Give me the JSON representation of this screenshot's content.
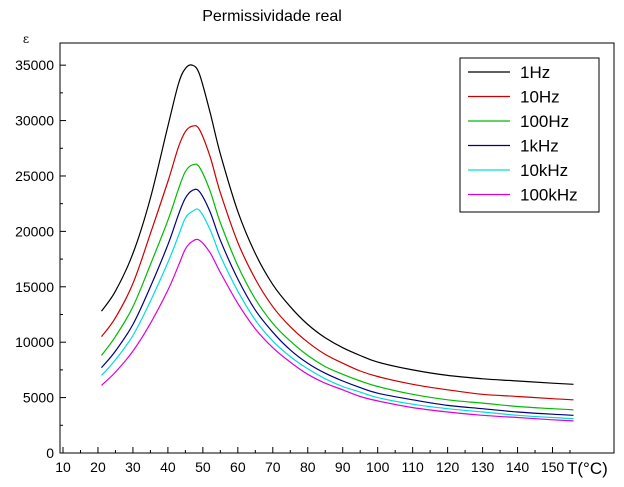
{
  "chart_data": {
    "type": "line",
    "title": "Permissividade real",
    "xlabel": "T(°C)",
    "ylabel": "ε",
    "xlim": [
      10,
      160
    ],
    "ylim": [
      0,
      37000
    ],
    "xticks": [
      10,
      20,
      30,
      40,
      50,
      60,
      70,
      80,
      90,
      100,
      110,
      120,
      130,
      140,
      150
    ],
    "yticks": [
      0,
      5000,
      10000,
      15000,
      20000,
      25000,
      30000,
      35000
    ],
    "grid": false,
    "legend_position": "top-right",
    "x": [
      21,
      25,
      30,
      35,
      40,
      43,
      45,
      47,
      49,
      52,
      55,
      60,
      65,
      70,
      75,
      80,
      85,
      90,
      95,
      100,
      110,
      120,
      130,
      140,
      150,
      156
    ],
    "series": [
      {
        "name": "1Hz",
        "color": "#000000",
        "values": [
          12800,
          14600,
          18000,
          23000,
          29500,
          33300,
          34700,
          35000,
          34200,
          30800,
          27000,
          21800,
          18000,
          15200,
          13200,
          11600,
          10400,
          9500,
          8800,
          8200,
          7500,
          7000,
          6700,
          6500,
          6300,
          6200
        ]
      },
      {
        "name": "10Hz",
        "color": "#cc0000",
        "values": [
          10500,
          12200,
          15300,
          19800,
          24500,
          27600,
          29000,
          29500,
          29200,
          26800,
          23500,
          19000,
          15700,
          13200,
          11400,
          10000,
          8900,
          8100,
          7400,
          6900,
          6200,
          5700,
          5300,
          5100,
          4900,
          4800
        ]
      },
      {
        "name": "100Hz",
        "color": "#00bb00",
        "values": [
          8800,
          10500,
          13200,
          17000,
          21000,
          23800,
          25400,
          26000,
          25800,
          23700,
          20800,
          16900,
          13900,
          11700,
          10100,
          8800,
          7800,
          7100,
          6500,
          6000,
          5300,
          4800,
          4500,
          4200,
          4000,
          3900
        ]
      },
      {
        "name": "1kHz",
        "color": "#000080",
        "values": [
          7700,
          9200,
          11600,
          15000,
          18800,
          21500,
          23000,
          23700,
          23600,
          21800,
          19200,
          15700,
          12900,
          10900,
          9300,
          8100,
          7200,
          6500,
          5900,
          5400,
          4800,
          4300,
          4000,
          3700,
          3500,
          3400
        ]
      },
      {
        "name": "10kHz",
        "color": "#00dddd",
        "values": [
          7000,
          8400,
          10600,
          13700,
          17200,
          19600,
          21200,
          21800,
          21900,
          20200,
          17800,
          14600,
          12000,
          10100,
          8700,
          7600,
          6700,
          6000,
          5500,
          5000,
          4400,
          4000,
          3700,
          3400,
          3200,
          3100
        ]
      },
      {
        "name": "100kHz",
        "color": "#dd00dd",
        "values": [
          6100,
          7300,
          9200,
          11700,
          14700,
          16900,
          18400,
          19100,
          19200,
          18100,
          16300,
          13500,
          11200,
          9500,
          8200,
          7100,
          6300,
          5700,
          5100,
          4700,
          4100,
          3700,
          3400,
          3200,
          3000,
          2900
        ]
      }
    ]
  }
}
